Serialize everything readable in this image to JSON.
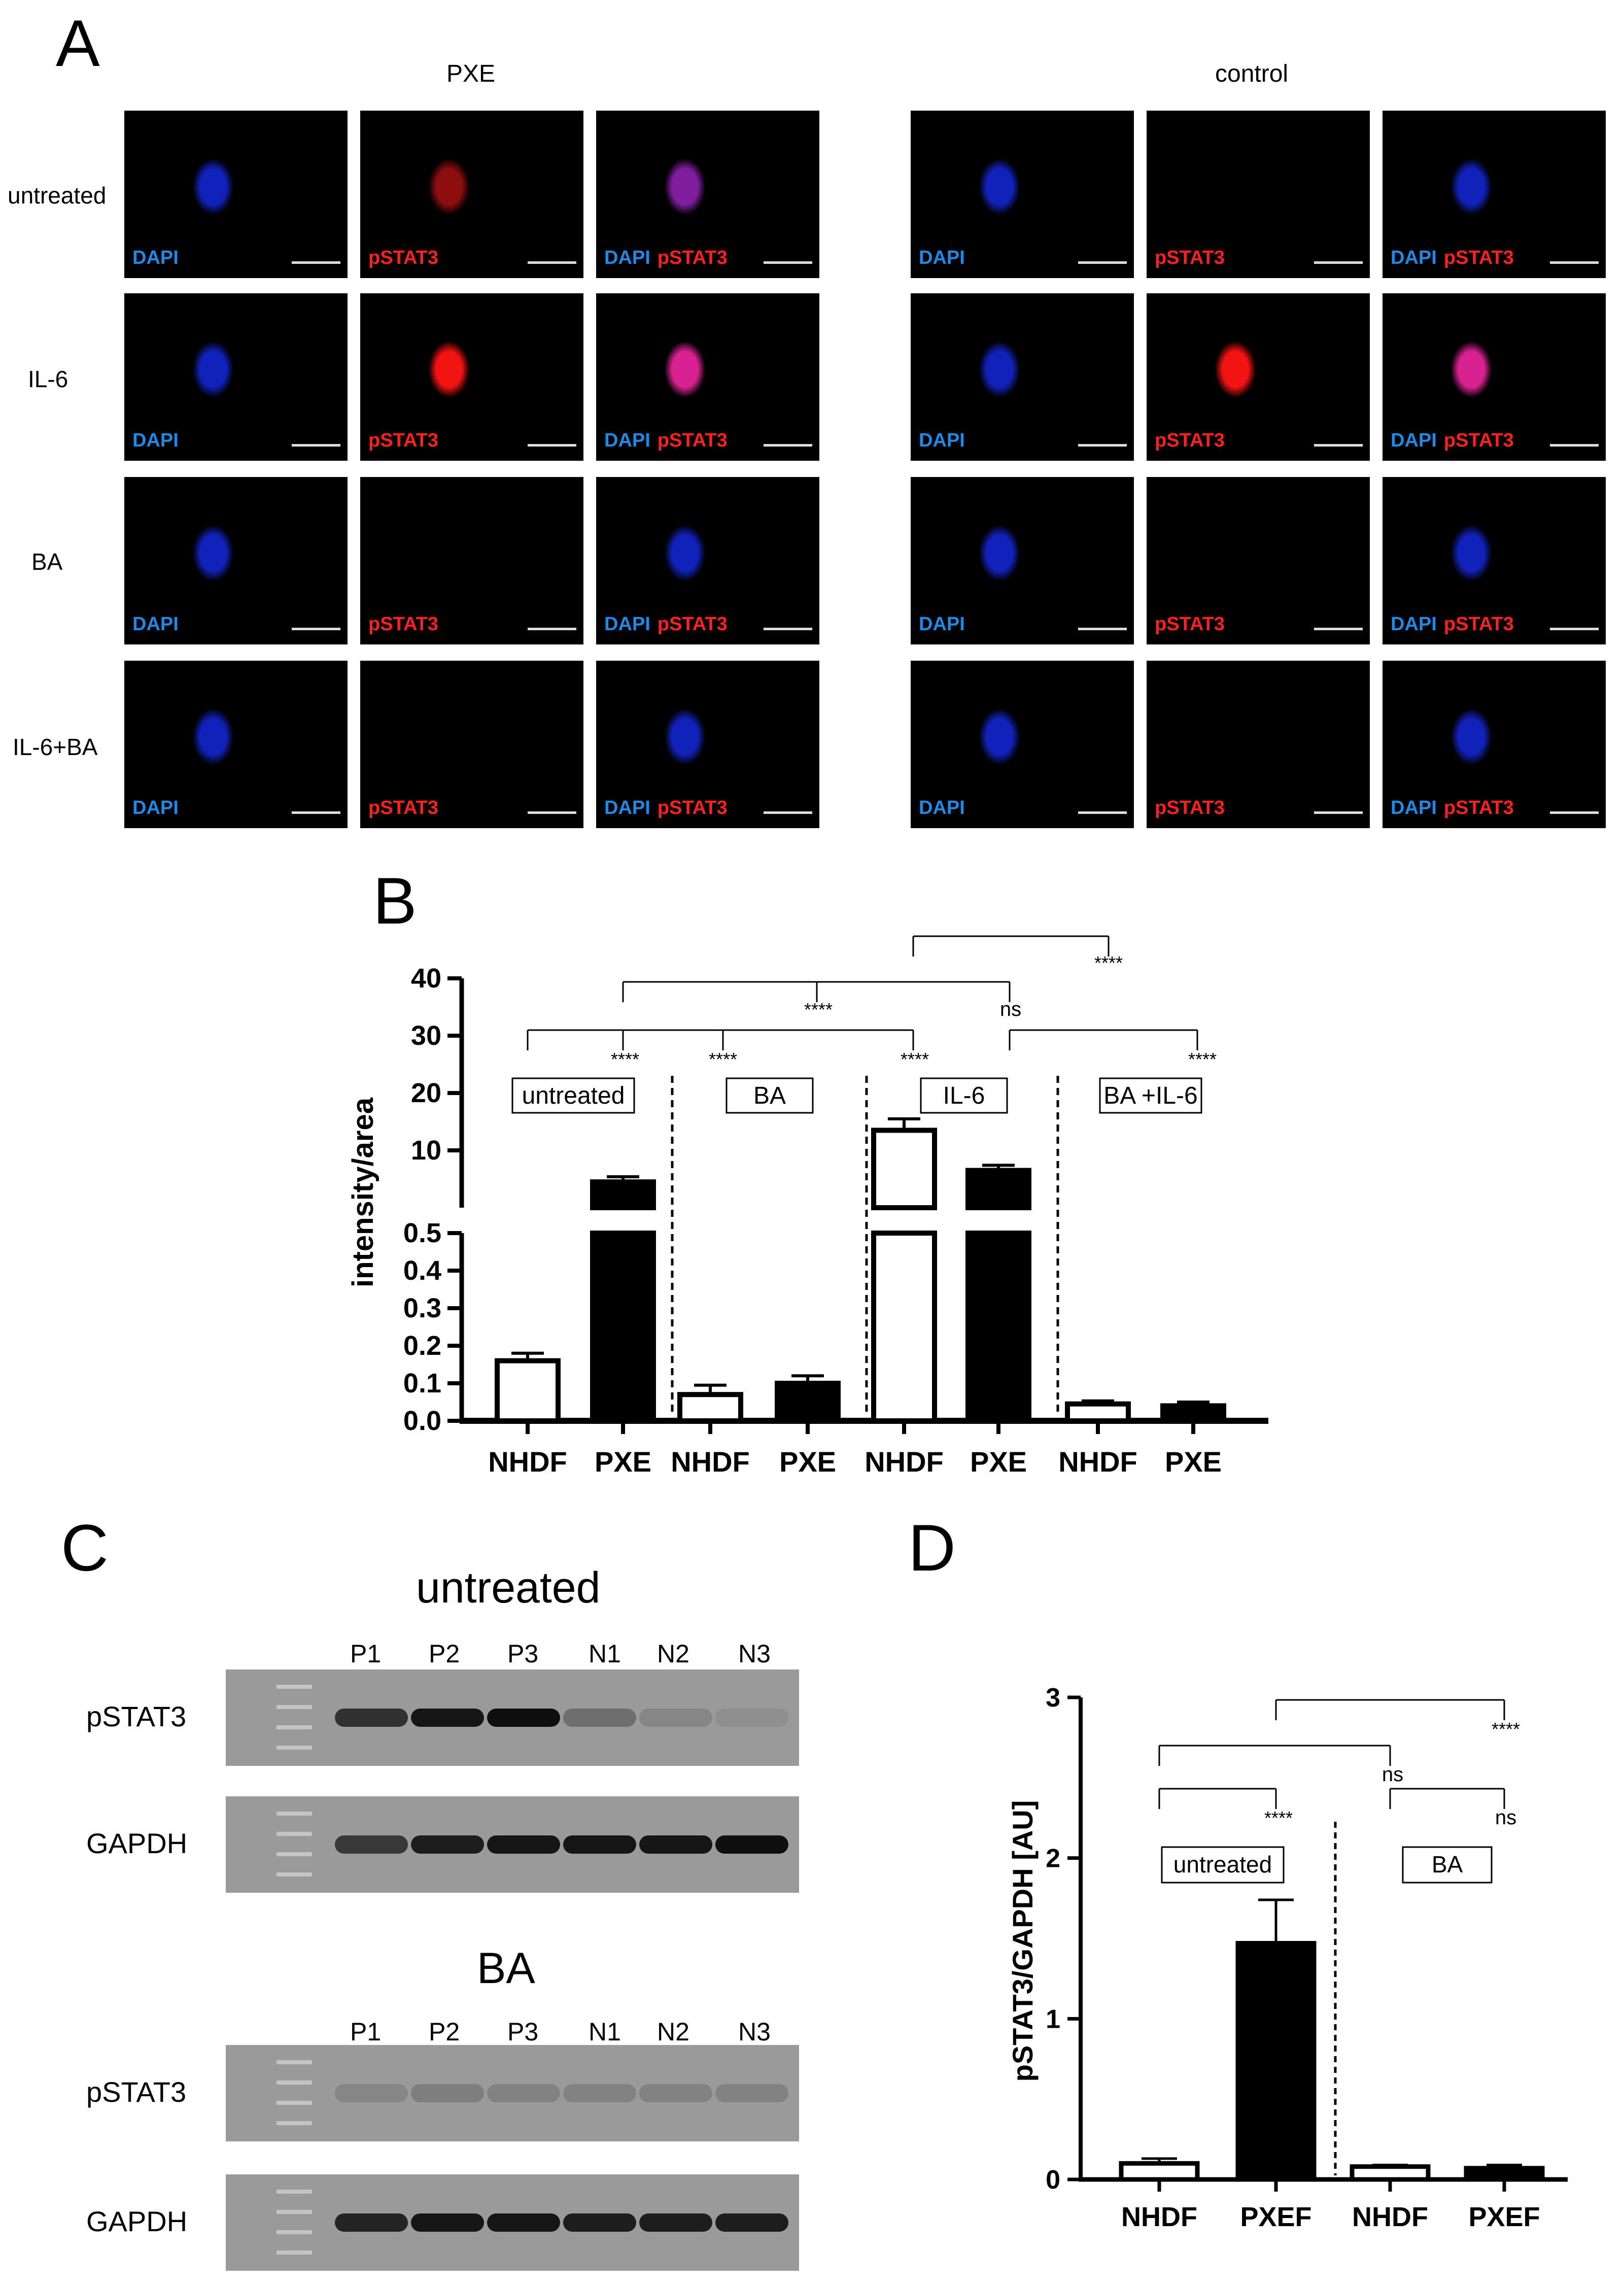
{
  "panel_a": {
    "letter": "A",
    "groups": [
      "PXE",
      "control"
    ],
    "rows": [
      "untreated",
      "IL-6",
      "BA",
      "IL-6+BA"
    ],
    "channels": [
      {
        "type": "dapi",
        "labels": [
          "DAPI"
        ]
      },
      {
        "type": "pstat3",
        "labels": [
          "pSTAT3"
        ]
      },
      {
        "type": "merge",
        "labels": [
          "DAPI",
          "pSTAT3"
        ]
      }
    ]
  },
  "panel_b": {
    "letter": "B",
    "legend_boxes": [
      "untreated",
      "BA",
      "IL-6",
      "BA +IL-6"
    ],
    "sig": {
      "star4": "****",
      "ns": "ns"
    },
    "chart_data": {
      "type": "bar",
      "ylabel": "intensity/area",
      "axis_break": true,
      "ylim_lower": [
        0,
        0.5
      ],
      "ylim_upper": [
        0,
        40
      ],
      "yticks_lower": [
        "0.0",
        "0.1",
        "0.2",
        "0.3",
        "0.4",
        "0.5"
      ],
      "yticks_upper": [
        "10",
        "20",
        "30",
        "40"
      ],
      "categories": [
        "NHDF",
        "PXE",
        "NHDF",
        "PXE",
        "NHDF",
        "PXE",
        "NHDF",
        "PXE"
      ],
      "values": [
        0.16,
        4.5,
        0.07,
        0.1,
        13.5,
        6.5,
        0.045,
        0.04
      ],
      "errors": [
        0.02,
        0.9,
        0.025,
        0.02,
        2.0,
        0.9,
        0.008,
        0.01
      ],
      "fill": [
        "open",
        "filled",
        "open",
        "filled",
        "open",
        "filled",
        "open",
        "filled"
      ]
    }
  },
  "panel_c": {
    "letter": "C",
    "blots": [
      {
        "title": "untreated",
        "lanes": [
          "P1",
          "P2",
          "P3",
          "N1",
          "N2",
          "N3"
        ],
        "rows": [
          {
            "label": "pSTAT3",
            "intensity": [
              0.0,
              0.75,
              0.95,
              1.0,
              0.3,
              0.12,
              0.05
            ]
          },
          {
            "label": "GAPDH",
            "intensity": [
              0.0,
              0.7,
              0.9,
              0.95,
              0.95,
              0.95,
              1.0
            ]
          }
        ]
      },
      {
        "title": "BA",
        "lanes": [
          "P1",
          "P2",
          "P3",
          "N1",
          "N2",
          "N3"
        ],
        "rows": [
          {
            "label": "pSTAT3",
            "intensity": [
              0.0,
              0.12,
              0.18,
              0.15,
              0.15,
              0.15,
              0.15
            ]
          },
          {
            "label": "GAPDH",
            "intensity": [
              0.0,
              0.85,
              0.95,
              0.95,
              0.9,
              0.9,
              0.9
            ]
          }
        ]
      }
    ]
  },
  "panel_d": {
    "letter": "D",
    "legend_boxes": [
      "untreated",
      "BA"
    ],
    "sig": {
      "star4": "****",
      "ns": "ns"
    },
    "chart_data": {
      "type": "bar",
      "ylabel": "pSTAT3/GAPDH [AU]",
      "ylim": [
        0,
        3
      ],
      "yticks": [
        "0",
        "1",
        "2",
        "3"
      ],
      "categories": [
        "NHDF",
        "PXEF",
        "NHDF",
        "PXEF"
      ],
      "values": [
        0.1,
        1.47,
        0.08,
        0.07
      ],
      "errors": [
        0.03,
        0.27,
        0.01,
        0.02
      ],
      "fill": [
        "open",
        "filled",
        "open",
        "filled"
      ]
    }
  }
}
